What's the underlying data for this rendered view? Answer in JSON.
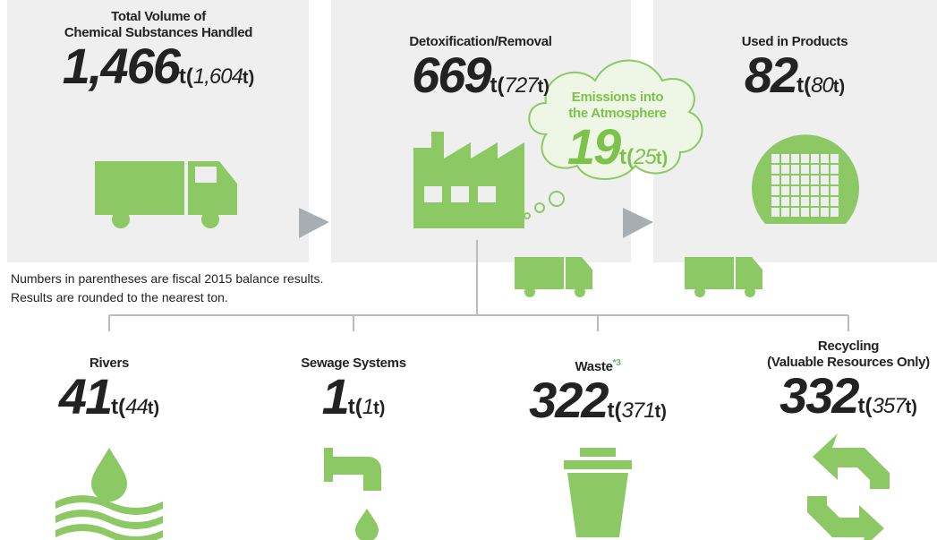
{
  "inputs": [
    {
      "title_lines": [
        "Total Volume of",
        "Chemical Substances Handled"
      ],
      "value": "1,466",
      "unit_open": "t(",
      "prev": "1,604",
      "unit_close": "t)"
    },
    {
      "title_lines": [
        "Detoxification/Removal"
      ],
      "value": "669",
      "unit_open": "t(",
      "prev": "727",
      "unit_close": "t)"
    },
    {
      "title_lines": [
        "Used in Products"
      ],
      "value": "82",
      "unit_open": "t(",
      "prev": "80",
      "unit_close": "t)"
    }
  ],
  "emission": {
    "title_lines": [
      "Emissions into",
      "the Atmosphere"
    ],
    "value": "19",
    "unit_open": "t(",
    "prev": "25",
    "unit_close": "t)"
  },
  "notes": [
    "Numbers in parentheses are fiscal 2015 balance results.",
    "Results are rounded to the nearest ton."
  ],
  "outputs": [
    {
      "title_lines": [
        "Rivers"
      ],
      "value": "41",
      "unit_open": "t(",
      "prev": "44",
      "unit_close": "t)"
    },
    {
      "title_lines": [
        "Sewage Systems"
      ],
      "value": "1",
      "unit_open": "t(",
      "prev": "1",
      "unit_close": "t)"
    },
    {
      "title_lines": [
        "Waste"
      ],
      "note": "*3",
      "value": "322",
      "unit_open": "t(",
      "prev": "371",
      "unit_close": "t)"
    },
    {
      "title_lines": [
        "Recycling",
        "(Valuable Resources Only)"
      ],
      "value": "332",
      "unit_open": "t(",
      "prev": "357",
      "unit_close": "t)"
    }
  ]
}
